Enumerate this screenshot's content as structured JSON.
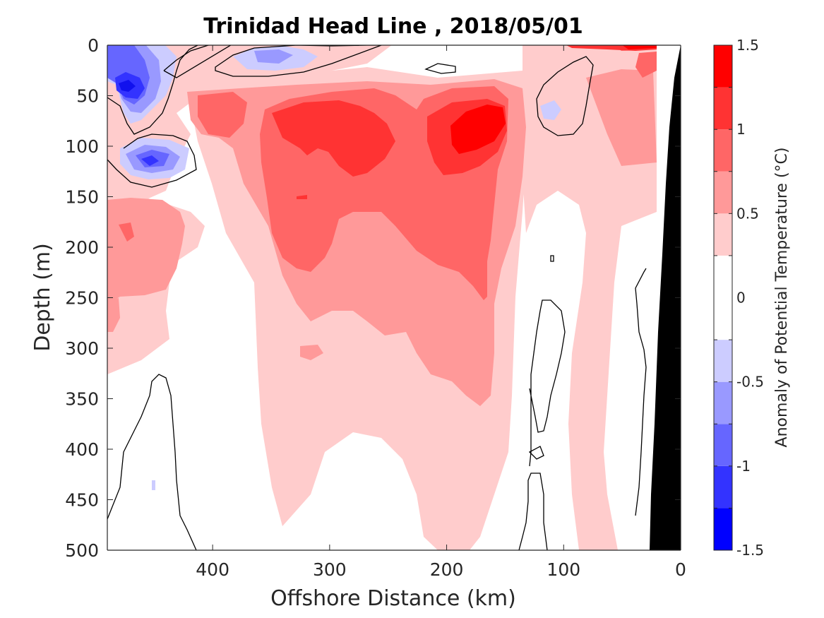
{
  "chart_data": {
    "type": "contour",
    "title": "Trinidad Head Line , 2018/05/01",
    "xlabel": "Offshore Distance (km)",
    "ylabel": "Depth (m)",
    "x_reversed": true,
    "xlim": [
      0,
      490
    ],
    "ylim": [
      0,
      500
    ],
    "y_reversed": true,
    "x_ticks": [
      "400",
      "300",
      "200",
      "100",
      "0"
    ],
    "x_tick_values": [
      400,
      300,
      200,
      100,
      0
    ],
    "y_ticks": [
      "0",
      "50",
      "100",
      "150",
      "200",
      "250",
      "300",
      "350",
      "400",
      "450",
      "500"
    ],
    "y_tick_values": [
      0,
      50,
      100,
      150,
      200,
      250,
      300,
      350,
      400,
      450,
      500
    ],
    "colorbar": {
      "label": "Anomaly of Potential Temperature (°C)",
      "range": [
        -1.5,
        1.5
      ],
      "tick_labels": [
        "1.5",
        "1",
        "0.5",
        "0",
        "-0.5",
        "-1",
        "-1.5"
      ],
      "tick_values": [
        1.5,
        1,
        0.5,
        0,
        -0.5,
        -1,
        -1.5
      ],
      "levels": [
        -1.5,
        -1.25,
        -1.0,
        -0.75,
        -0.5,
        -0.25,
        0.25,
        0.5,
        0.75,
        1.0,
        1.25,
        1.5
      ],
      "colors": [
        "#0000ff",
        "#3333ff",
        "#6666ff",
        "#9999ff",
        "#ccccff",
        "#ffffff",
        "#ffcccc",
        "#ff9999",
        "#ff6666",
        "#ff3333",
        "#ff0000"
      ]
    },
    "features": {
      "warm_core_max": 1.25,
      "cold_core_min": -1.25,
      "bottom_topography_color": "#000000"
    }
  }
}
